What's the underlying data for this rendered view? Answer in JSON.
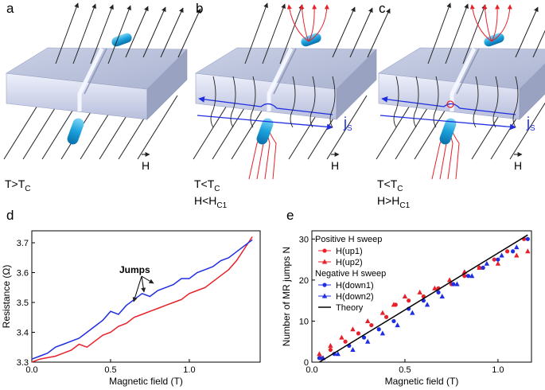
{
  "panels": [
    {
      "label": "a",
      "conditions": [
        {
          "text": "T>T",
          "sub": "C"
        }
      ],
      "field": "H"
    },
    {
      "label": "b",
      "conditions": [
        {
          "text": "T<T",
          "sub": "C"
        },
        {
          "text": "H<H",
          "sub": "C1"
        }
      ],
      "field": "H",
      "current": {
        "text": "j",
        "sub": "S"
      }
    },
    {
      "label": "c",
      "conditions": [
        {
          "text": "T<T",
          "sub": "C"
        },
        {
          "text": "H>H",
          "sub": "C1"
        }
      ],
      "field": "H",
      "current": {
        "text": "j",
        "sub": "S"
      }
    }
  ],
  "chart_data": [
    {
      "label": "d",
      "type": "line",
      "xlabel": "Magnetic field (T)",
      "ylabel": "Resistance (Ω)",
      "annotation": "Jumps",
      "xlim": [
        0,
        1.45
      ],
      "ylim": [
        3.3,
        3.74
      ],
      "xticks": [
        {
          "value": 0,
          "label": "0.0"
        },
        0.5,
        {
          "value": 1,
          "label": "1.0"
        }
      ],
      "yticks": [
        3.3,
        3.4,
        3.5,
        3.6,
        3.7
      ],
      "series": [
        {
          "color": "#e8202a",
          "x": [
            0,
            0.05,
            0.1,
            0.15,
            0.2,
            0.25,
            0.3,
            0.35,
            0.4,
            0.45,
            0.5,
            0.55,
            0.6,
            0.65,
            0.7,
            0.75,
            0.8,
            0.85,
            0.9,
            0.95,
            1.0,
            1.05,
            1.1,
            1.15,
            1.2,
            1.25,
            1.3,
            1.35,
            1.4
          ],
          "values": [
            3.3,
            3.31,
            3.315,
            3.32,
            3.33,
            3.34,
            3.36,
            3.35,
            3.37,
            3.39,
            3.4,
            3.42,
            3.43,
            3.45,
            3.46,
            3.47,
            3.48,
            3.49,
            3.5,
            3.51,
            3.53,
            3.54,
            3.55,
            3.57,
            3.59,
            3.61,
            3.64,
            3.68,
            3.72
          ]
        },
        {
          "color": "#1f2ee0",
          "x": [
            0,
            0.05,
            0.1,
            0.15,
            0.2,
            0.25,
            0.3,
            0.35,
            0.4,
            0.45,
            0.5,
            0.55,
            0.6,
            0.65,
            0.7,
            0.75,
            0.8,
            0.85,
            0.9,
            0.95,
            1.0,
            1.05,
            1.1,
            1.15,
            1.2,
            1.25,
            1.3,
            1.35,
            1.4
          ],
          "values": [
            3.31,
            3.32,
            3.33,
            3.35,
            3.36,
            3.37,
            3.38,
            3.4,
            3.42,
            3.44,
            3.47,
            3.46,
            3.49,
            3.51,
            3.53,
            3.52,
            3.54,
            3.55,
            3.56,
            3.58,
            3.58,
            3.6,
            3.61,
            3.62,
            3.64,
            3.65,
            3.67,
            3.69,
            3.71
          ]
        }
      ]
    },
    {
      "label": "e",
      "type": "scatter",
      "xlabel": "Magnetic field (T)",
      "ylabel": "Number of MR jumps N",
      "xlim": [
        0,
        1.18
      ],
      "ylim": [
        0,
        32
      ],
      "xticks": [
        {
          "value": 0,
          "label": "0.0"
        },
        0.5,
        {
          "value": 1,
          "label": "1.0"
        }
      ],
      "yticks": [
        0,
        10,
        20,
        30
      ],
      "legend": "upper left",
      "series_groups": [
        {
          "title": "Positive H sweep",
          "series": [
            {
              "name": "H(up1)",
              "color": "#e8202a",
              "marker": "circle",
              "x": [
                0.05,
                0.1,
                0.18,
                0.25,
                0.32,
                0.4,
                0.45,
                0.52,
                0.6,
                0.68,
                0.75,
                0.82,
                0.9,
                0.98,
                1.05,
                1.14
              ],
              "values": [
                1,
                3,
                5,
                7,
                9,
                11,
                14,
                15,
                16,
                18,
                19,
                21,
                23,
                25,
                27,
                30
              ]
            },
            {
              "name": "H(up2)",
              "color": "#e8202a",
              "marker": "triangle",
              "x": [
                0.04,
                0.1,
                0.16,
                0.22,
                0.3,
                0.38,
                0.44,
                0.5,
                0.58,
                0.66,
                0.74,
                0.82,
                0.9,
                1.0,
                1.1,
                1.16
              ],
              "values": [
                2,
                4,
                6,
                8,
                10,
                12,
                14,
                16,
                17,
                18,
                20,
                22,
                23,
                24,
                26,
                27
              ]
            }
          ]
        },
        {
          "title": "Negative H sweep",
          "series": [
            {
              "name": "H(down1)",
              "color": "#1f2ee0",
              "marker": "circle",
              "x": [
                0.04,
                0.12,
                0.2,
                0.28,
                0.36,
                0.44,
                0.52,
                0.6,
                0.68,
                0.76,
                0.84,
                0.92,
                1.0,
                1.08,
                1.16
              ],
              "values": [
                1,
                2,
                4,
                6,
                8,
                10,
                13,
                15,
                17,
                19,
                21,
                23,
                25,
                27,
                30
              ]
            },
            {
              "name": "H(down2)",
              "color": "#1f2ee0",
              "marker": "triangle",
              "x": [
                0.06,
                0.14,
                0.22,
                0.3,
                0.38,
                0.46,
                0.54,
                0.62,
                0.7,
                0.78,
                0.86,
                0.94,
                1.02,
                1.1
              ],
              "values": [
                1,
                2,
                3,
                5,
                7,
                9,
                12,
                14,
                16,
                19,
                21,
                24,
                26,
                28
              ]
            }
          ]
        }
      ],
      "series": [
        {
          "name": "Theory",
          "color": "#000000",
          "x": [
            0.04,
            1.16
          ],
          "values": [
            0,
            31
          ]
        }
      ]
    }
  ]
}
